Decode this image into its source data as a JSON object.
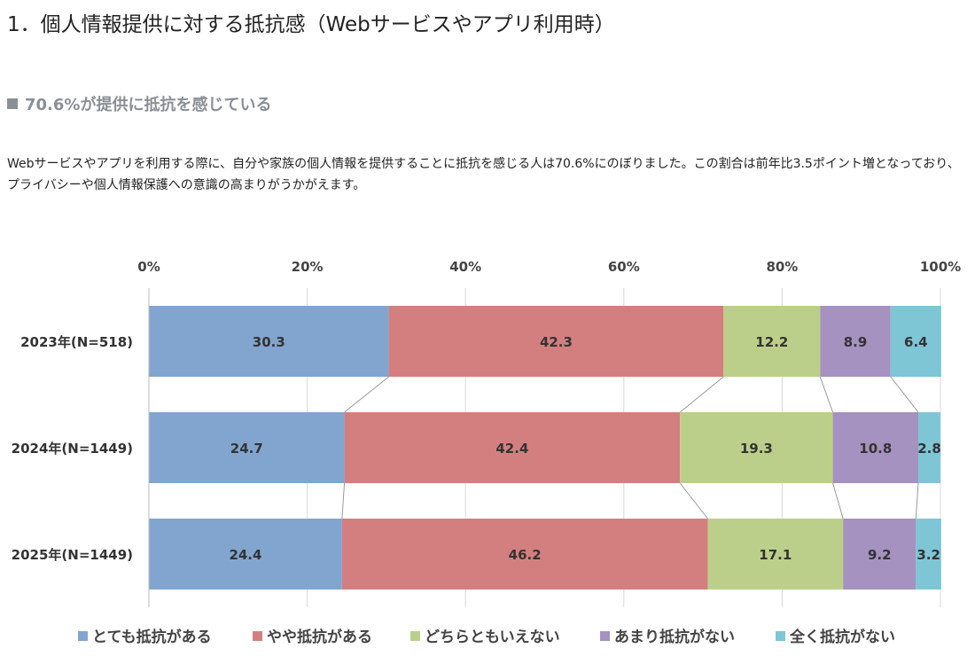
{
  "title": "1．個人情報提供に対する抵抗感（Webサービスやアプリ利用時）",
  "subtitle": "70.6%が提供に抵抗を感じている",
  "body": "Webサービスやアプリを利用する際に、自分や家族の個人情報を提供することに抵抗を感じる人は70.6%にのぼりました。この割合は前年比3.5ポイント増となっており、プライバシーや個人情報保護への意識の高まりがうかがえます。",
  "chart_data": {
    "type": "bar",
    "orientation": "horizontal-stacked-100",
    "categories": [
      "2023年(N=518)",
      "2024年(N=1449)",
      "2025年(N=1449)"
    ],
    "xticks": [
      "0%",
      "20%",
      "40%",
      "60%",
      "80%",
      "100%"
    ],
    "xlim": [
      0,
      100
    ],
    "grid": true,
    "legend_position": "bottom",
    "series": [
      {
        "name": "とても抵抗がある",
        "color": "#82a5d0",
        "values": [
          30.3,
          24.7,
          24.4
        ]
      },
      {
        "name": "やや抵抗がある",
        "color": "#d47f7f",
        "values": [
          42.3,
          42.4,
          46.2
        ]
      },
      {
        "name": "どちらともいえない",
        "color": "#bccf8a",
        "values": [
          12.2,
          19.3,
          17.1
        ]
      },
      {
        "name": "あまり抵抗がない",
        "color": "#a592c0",
        "values": [
          8.9,
          10.8,
          9.2
        ]
      },
      {
        "name": "全く抵抗がない",
        "color": "#7ec6d6",
        "values": [
          6.4,
          2.8,
          3.2
        ]
      }
    ]
  }
}
